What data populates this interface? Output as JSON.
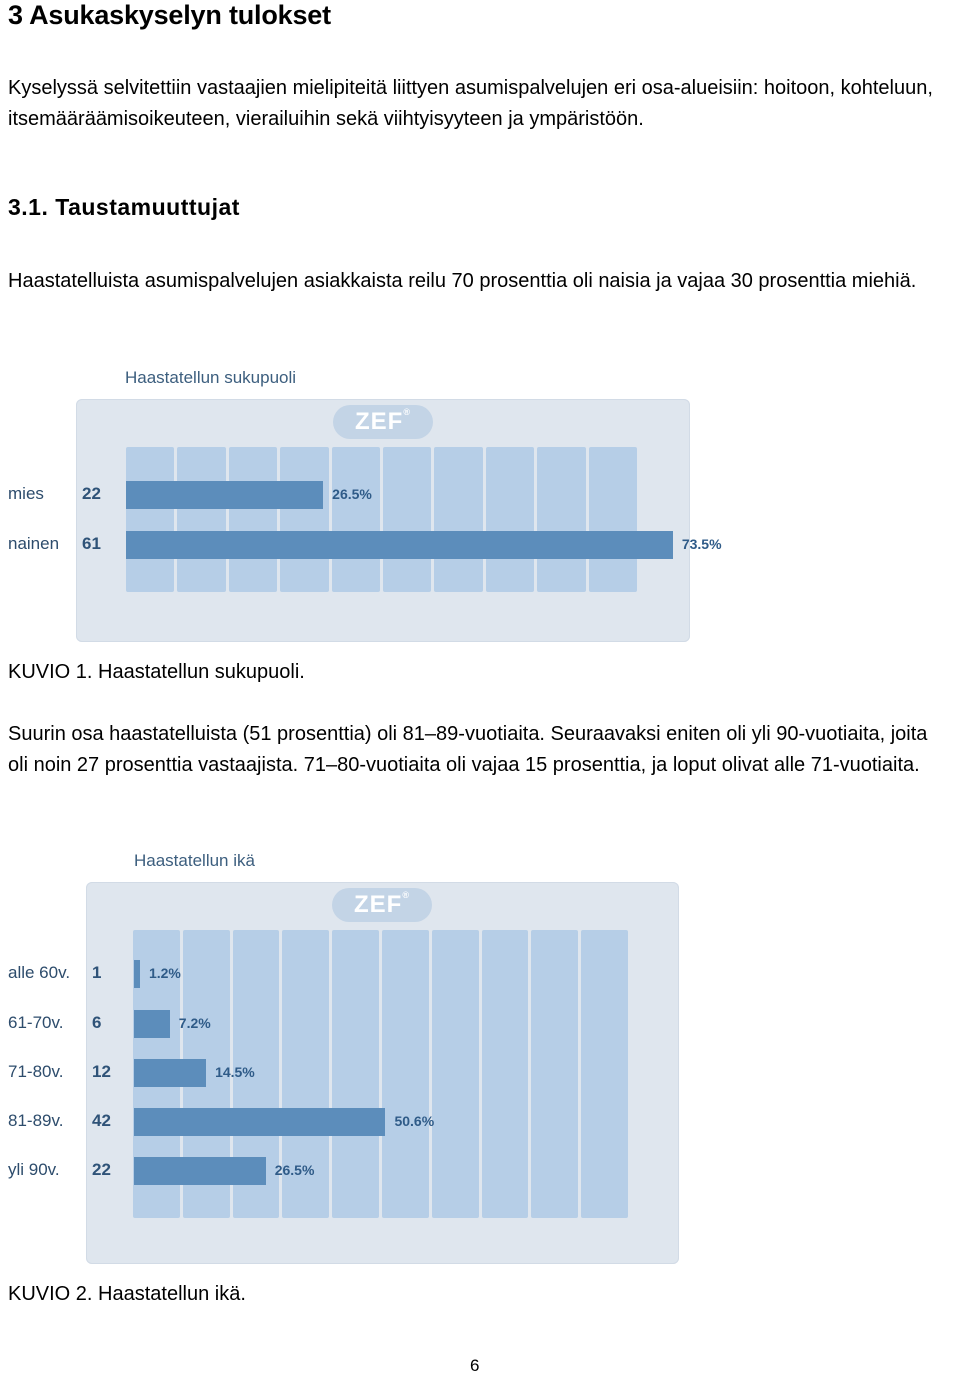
{
  "heading": "3 Asukaskyselyn tulokset",
  "intro": "Kyselyssä selvitettiin vastaajien mielipiteitä liittyen asumispalvelujen eri osa-alueisiin: hoitoon, kohteluun, itsemääräämisoikeuteen, vierailuihin sekä viihtyisyyteen ja ympäristöön.",
  "section": {
    "title": "3.1. Taustamuuttujat",
    "paragraph": "Haastatelluista asumispalvelujen asiakkaista reilu 70 prosenttia oli naisia ja vajaa 30 prosenttia miehiä."
  },
  "figure1": {
    "caption": "KUVIO 1. Haastatellun sukupuoli."
  },
  "paragraph2": "Suurin osa haastatelluista (51 prosenttia) oli 81–89-vuotiaita. Seuraavaksi eniten oli yli 90-vuotiaita, joita oli noin 27 prosenttia vastaajista. 71–80-vuotiaita oli vajaa 15 prosenttia, ja loput olivat alle 71-vuotiaita.",
  "figure2": {
    "caption": "KUVIO 2. Haastatellun ikä."
  },
  "logo_text": "ZEF",
  "logo_mark": "®",
  "page_number": "6",
  "colors": {
    "panel": "#dfe6ee",
    "column": "#b6cee7",
    "bar": "#5c8dbb",
    "text": "#2d4c6c"
  },
  "chart_data": [
    {
      "type": "bar",
      "orientation": "horizontal",
      "title": "Haastatellun sukupuoli",
      "categories": [
        "mies",
        "nainen"
      ],
      "counts": [
        "22",
        "61"
      ],
      "values": [
        26.5,
        73.5
      ],
      "value_labels": [
        "26.5%",
        "73.5%"
      ],
      "xlim": [
        0,
        100
      ]
    },
    {
      "type": "bar",
      "orientation": "horizontal",
      "title": "Haastatellun ikä",
      "categories": [
        "alle 60v.",
        "61-70v.",
        "71-80v.",
        "81-89v.",
        "yli 90v."
      ],
      "counts": [
        "1",
        "6",
        "12",
        "42",
        "22"
      ],
      "values": [
        1.2,
        7.2,
        14.5,
        50.6,
        26.5
      ],
      "value_labels": [
        "1.2%",
        "7.2%",
        "14.5%",
        "50.6%",
        "26.5%"
      ],
      "xlim": [
        0,
        100
      ]
    }
  ]
}
